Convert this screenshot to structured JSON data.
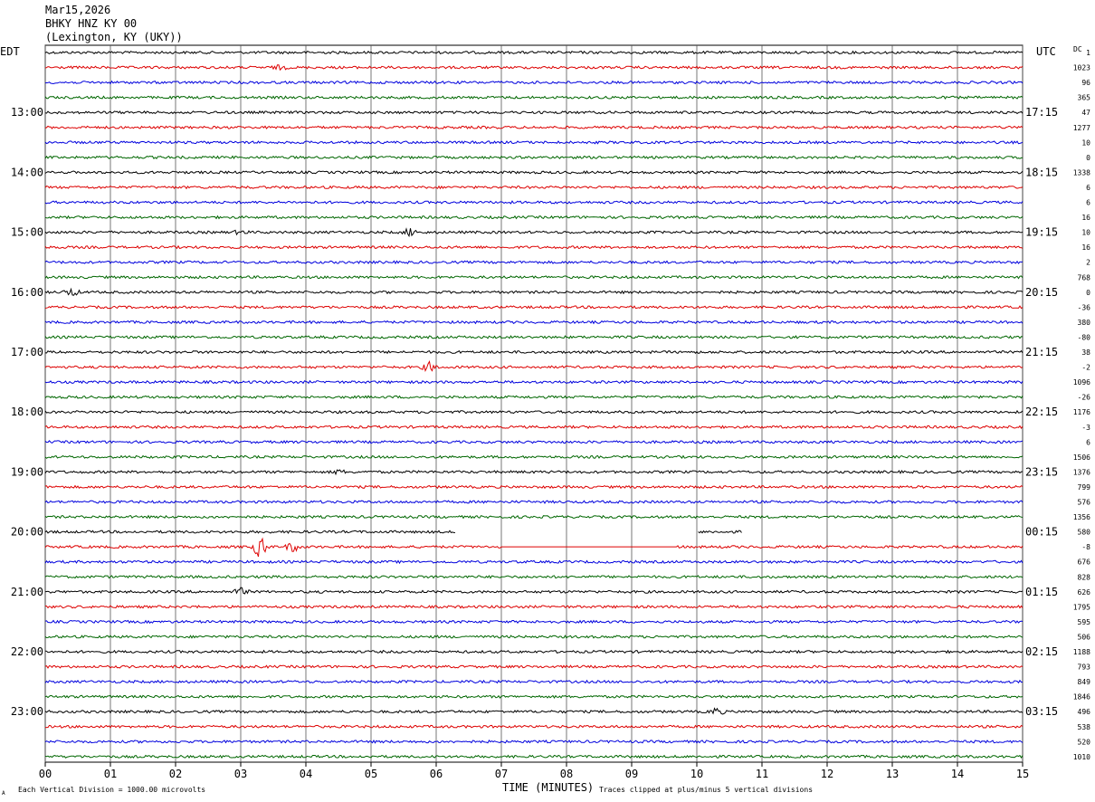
{
  "header": {
    "date": "Mar15,2026",
    "station": "BHKY HNZ KY 00",
    "location": "(Lexington, KY (UKY))"
  },
  "left_tz": "EDT",
  "right_tz": "UTC",
  "dc_label": "DC",
  "footer": {
    "scale_note": "Each Vertical Division = 1000.00 microvolts",
    "clip_note": "Traces clipped at plus/minus 5 vertical divisions",
    "corner_mark": "A"
  },
  "colors": {
    "cycle": [
      "#000000",
      "#dd0000",
      "#0000dd",
      "#006600"
    ],
    "grid": "#000000"
  },
  "chart_data": {
    "type": "line",
    "title": "",
    "xlabel": "TIME (MINUTES)",
    "x_ticks": [
      "00",
      "01",
      "02",
      "03",
      "04",
      "05",
      "06",
      "07",
      "08",
      "09",
      "10",
      "11",
      "12",
      "13",
      "14",
      "15"
    ],
    "xlim": [
      0,
      15
    ],
    "left_hour_labels": [
      "13:00",
      "14:00",
      "15:00",
      "16:00",
      "17:00",
      "18:00",
      "19:00",
      "20:00",
      "21:00",
      "22:00",
      "23:00"
    ],
    "right_hour_labels": [
      "17:15",
      "18:15",
      "19:15",
      "20:15",
      "21:15",
      "22:15",
      "23:15",
      "00:15",
      "01:15",
      "02:15",
      "03:15"
    ],
    "dc_offsets": [
      "1",
      "1023",
      "96",
      "365",
      "47",
      "1277",
      "10",
      "0",
      "1338",
      "6",
      "6",
      "16",
      "10",
      "16",
      "2",
      "768",
      "0",
      "-36",
      "380",
      "-80",
      "38",
      "-2",
      "1096",
      "-26",
      "1176",
      "-3",
      "6",
      "1506",
      "1376",
      "799",
      "576",
      "1356",
      "580",
      "-8",
      "676",
      "828",
      "626",
      "1795",
      "595",
      "506",
      "1188",
      "793",
      "849",
      "1846",
      "496",
      "538",
      "520",
      "1010"
    ],
    "trace_count": 48,
    "events": [
      {
        "trace": 1,
        "minute": 3.6,
        "amp": 2
      },
      {
        "trace": 12,
        "minute": 3.0,
        "amp": 2
      },
      {
        "trace": 12,
        "minute": 5.6,
        "amp": 4
      },
      {
        "trace": 16,
        "minute": 0.4,
        "amp": 4
      },
      {
        "trace": 21,
        "minute": 5.9,
        "amp": 5
      },
      {
        "trace": 28,
        "minute": 4.5,
        "amp": 2
      },
      {
        "trace": 33,
        "minute": 3.3,
        "amp": 12
      },
      {
        "trace": 33,
        "minute": 3.8,
        "amp": 5
      },
      {
        "trace": 36,
        "minute": 3.0,
        "amp": 4
      },
      {
        "trace": 44,
        "minute": 10.3,
        "amp": 4
      }
    ],
    "gaps": [
      {
        "trace": 32,
        "from": 6.3,
        "to": 10.0
      },
      {
        "trace": 32,
        "from": 10.7,
        "to": 15.0
      },
      {
        "trace": 33,
        "from": 7.0,
        "to": 9.7,
        "flat": true
      }
    ]
  }
}
